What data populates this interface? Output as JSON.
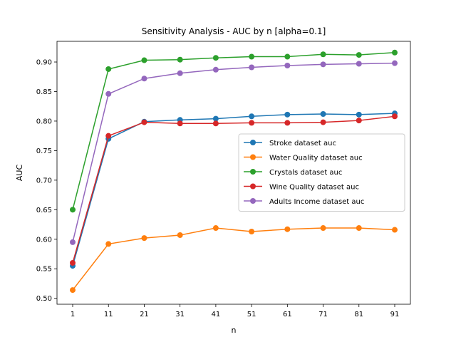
{
  "chart_data": {
    "type": "line",
    "title": "Sensitivity Analysis - AUC by n [alpha=0.1]",
    "xlabel": "n",
    "ylabel": "AUC",
    "x": [
      1,
      11,
      21,
      31,
      41,
      51,
      61,
      71,
      81,
      91
    ],
    "ylim": [
      0.49,
      0.935
    ],
    "yticks": [
      "0.50",
      "0.55",
      "0.60",
      "0.65",
      "0.70",
      "0.75",
      "0.80",
      "0.85",
      "0.90"
    ],
    "ytick_values": [
      0.5,
      0.55,
      0.6,
      0.65,
      0.7,
      0.75,
      0.8,
      0.85,
      0.9
    ],
    "grid": false,
    "legend_position": "center-right",
    "series": [
      {
        "name": "Stroke dataset auc",
        "color": "#1f77b4",
        "values": [
          0.555,
          0.77,
          0.799,
          0.802,
          0.804,
          0.808,
          0.811,
          0.812,
          0.811,
          0.813
        ]
      },
      {
        "name": "Water Quality dataset auc",
        "color": "#ff7f0e",
        "values": [
          0.514,
          0.592,
          0.602,
          0.607,
          0.619,
          0.613,
          0.617,
          0.619,
          0.619,
          0.616
        ]
      },
      {
        "name": "Crystals dataset auc",
        "color": "#2ca02c",
        "values": [
          0.65,
          0.888,
          0.903,
          0.904,
          0.907,
          0.909,
          0.909,
          0.913,
          0.912,
          0.916
        ]
      },
      {
        "name": "Wine Quality dataset auc",
        "color": "#d62728",
        "values": [
          0.56,
          0.775,
          0.798,
          0.796,
          0.796,
          0.797,
          0.797,
          0.798,
          0.801,
          0.808
        ]
      },
      {
        "name": "Adults Income dataset auc",
        "color": "#9467bd",
        "values": [
          0.595,
          0.846,
          0.872,
          0.881,
          0.887,
          0.891,
          0.894,
          0.896,
          0.897,
          0.898
        ]
      }
    ]
  }
}
